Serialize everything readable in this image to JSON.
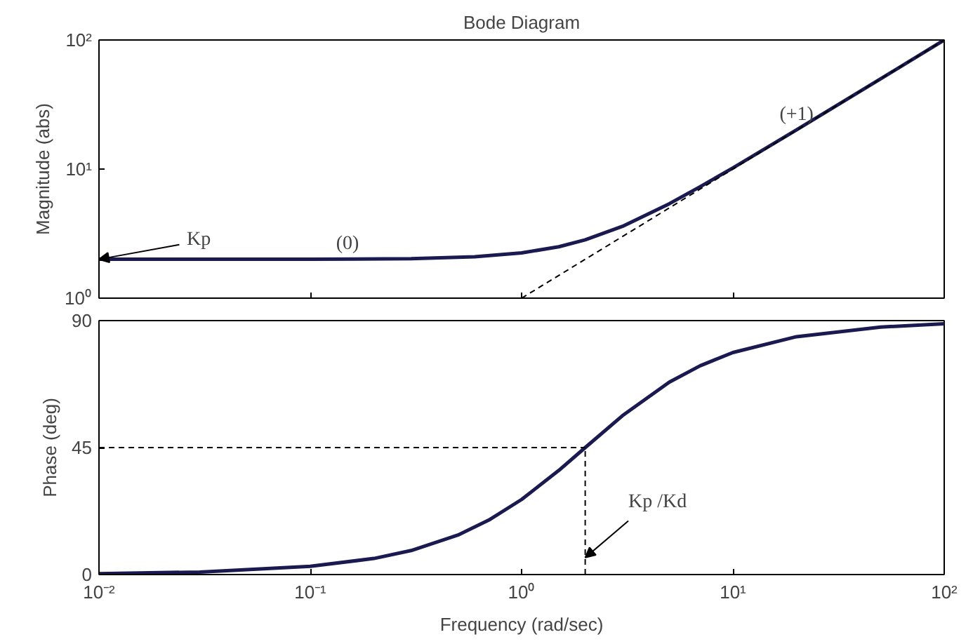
{
  "chart_data": [
    {
      "type": "line",
      "title": "Bode Diagram",
      "ylabel": "Magnitude (abs)",
      "log": "xy",
      "tick_labels": "y",
      "grid": false,
      "xlim": [
        0.01,
        100
      ],
      "xticks": [
        {
          "value": 0.01,
          "label": null
        },
        {
          "value": 0.1,
          "label": null
        },
        {
          "value": 1,
          "label": null
        },
        {
          "value": 10,
          "label": null
        },
        {
          "value": 100,
          "label": null
        }
      ],
      "ylim": [
        1,
        100
      ],
      "yticks": [
        {
          "value": 1,
          "label": "10⁰"
        },
        {
          "value": 10,
          "label": "10¹"
        },
        {
          "value": 100,
          "label": "10²"
        }
      ],
      "series": [
        {
          "color": "#1a1a50",
          "x": [
            0.01,
            0.03,
            0.1,
            0.3,
            0.6,
            1,
            1.5,
            2,
            3,
            5,
            7,
            10,
            20,
            50,
            100
          ],
          "values": [
            2.0,
            2.0,
            2.0,
            2.02,
            2.09,
            2.24,
            2.5,
            2.83,
            3.6,
            5.39,
            7.3,
            10.2,
            20.1,
            50.0,
            100
          ]
        },
        {
          "color": "#000000",
          "line_style": "dashed",
          "x": [
            1,
            100
          ],
          "values": [
            1,
            100
          ]
        }
      ],
      "annotations": [
        {
          "text": "Kp",
          "x": 0.01,
          "y": 2
        },
        {
          "text": "(0)",
          "x": 0.15,
          "y": 2
        },
        {
          "text": "(+1)",
          "x": 20,
          "y": 20
        }
      ]
    },
    {
      "type": "line",
      "xlabel": "Frequency (rad/sec)",
      "ylabel": "Phase (deg)",
      "log": "x",
      "grid": false,
      "xlim": [
        0.01,
        100
      ],
      "xticks": [
        {
          "value": 0.01,
          "label": "10⁻²"
        },
        {
          "value": 0.1,
          "label": "10⁻¹"
        },
        {
          "value": 1,
          "label": "10⁰"
        },
        {
          "value": 10,
          "label": "10¹"
        },
        {
          "value": 100,
          "label": "10²"
        }
      ],
      "ylim": [
        0,
        90
      ],
      "yticks": [
        0,
        45,
        90
      ],
      "series": [
        {
          "color": "#1a1a50",
          "x": [
            0.01,
            0.03,
            0.1,
            0.2,
            0.3,
            0.5,
            0.7,
            1,
            1.5,
            2,
            3,
            5,
            7,
            10,
            20,
            50,
            100
          ],
          "values": [
            0.3,
            0.9,
            2.9,
            5.7,
            8.5,
            14,
            19.3,
            26.6,
            36.9,
            45,
            56.3,
            68.2,
            74,
            78.7,
            84.3,
            87.7,
            88.9
          ]
        }
      ],
      "ref_lines": [
        {
          "axis": "y",
          "value": 45,
          "line_style": "dashed",
          "color": "#000000"
        },
        {
          "axis": "x",
          "value": 2,
          "line_style": "dashed",
          "color": "#000000"
        }
      ],
      "annotations": [
        {
          "text": "Kp  /Kd",
          "x": 2,
          "y": 6
        }
      ]
    }
  ]
}
